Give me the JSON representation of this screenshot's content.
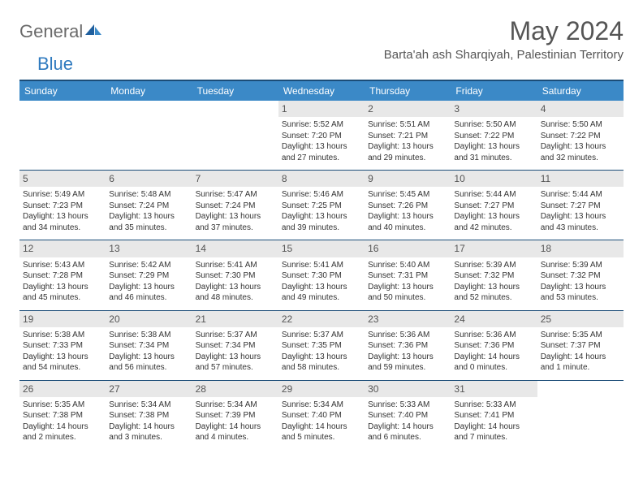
{
  "brand": {
    "name1": "General",
    "name2": "Blue"
  },
  "title": "May 2024",
  "location": "Barta'ah ash Sharqiyah, Palestinian Territory",
  "colors": {
    "header_bg": "#3b89c7",
    "header_fg": "#ffffff",
    "rule": "#1c4d78",
    "daynum_bg": "#e8e8e8",
    "text": "#333333",
    "title_fg": "#555555",
    "logo_gray": "#6a6a6a",
    "logo_blue": "#2f7abf"
  },
  "day_headers": [
    "Sunday",
    "Monday",
    "Tuesday",
    "Wednesday",
    "Thursday",
    "Friday",
    "Saturday"
  ],
  "weeks": [
    [
      null,
      null,
      null,
      {
        "n": "1",
        "sr": "Sunrise: 5:52 AM",
        "ss": "Sunset: 7:20 PM",
        "dl1": "Daylight: 13 hours",
        "dl2": "and 27 minutes."
      },
      {
        "n": "2",
        "sr": "Sunrise: 5:51 AM",
        "ss": "Sunset: 7:21 PM",
        "dl1": "Daylight: 13 hours",
        "dl2": "and 29 minutes."
      },
      {
        "n": "3",
        "sr": "Sunrise: 5:50 AM",
        "ss": "Sunset: 7:22 PM",
        "dl1": "Daylight: 13 hours",
        "dl2": "and 31 minutes."
      },
      {
        "n": "4",
        "sr": "Sunrise: 5:50 AM",
        "ss": "Sunset: 7:22 PM",
        "dl1": "Daylight: 13 hours",
        "dl2": "and 32 minutes."
      }
    ],
    [
      {
        "n": "5",
        "sr": "Sunrise: 5:49 AM",
        "ss": "Sunset: 7:23 PM",
        "dl1": "Daylight: 13 hours",
        "dl2": "and 34 minutes."
      },
      {
        "n": "6",
        "sr": "Sunrise: 5:48 AM",
        "ss": "Sunset: 7:24 PM",
        "dl1": "Daylight: 13 hours",
        "dl2": "and 35 minutes."
      },
      {
        "n": "7",
        "sr": "Sunrise: 5:47 AM",
        "ss": "Sunset: 7:24 PM",
        "dl1": "Daylight: 13 hours",
        "dl2": "and 37 minutes."
      },
      {
        "n": "8",
        "sr": "Sunrise: 5:46 AM",
        "ss": "Sunset: 7:25 PM",
        "dl1": "Daylight: 13 hours",
        "dl2": "and 39 minutes."
      },
      {
        "n": "9",
        "sr": "Sunrise: 5:45 AM",
        "ss": "Sunset: 7:26 PM",
        "dl1": "Daylight: 13 hours",
        "dl2": "and 40 minutes."
      },
      {
        "n": "10",
        "sr": "Sunrise: 5:44 AM",
        "ss": "Sunset: 7:27 PM",
        "dl1": "Daylight: 13 hours",
        "dl2": "and 42 minutes."
      },
      {
        "n": "11",
        "sr": "Sunrise: 5:44 AM",
        "ss": "Sunset: 7:27 PM",
        "dl1": "Daylight: 13 hours",
        "dl2": "and 43 minutes."
      }
    ],
    [
      {
        "n": "12",
        "sr": "Sunrise: 5:43 AM",
        "ss": "Sunset: 7:28 PM",
        "dl1": "Daylight: 13 hours",
        "dl2": "and 45 minutes."
      },
      {
        "n": "13",
        "sr": "Sunrise: 5:42 AM",
        "ss": "Sunset: 7:29 PM",
        "dl1": "Daylight: 13 hours",
        "dl2": "and 46 minutes."
      },
      {
        "n": "14",
        "sr": "Sunrise: 5:41 AM",
        "ss": "Sunset: 7:30 PM",
        "dl1": "Daylight: 13 hours",
        "dl2": "and 48 minutes."
      },
      {
        "n": "15",
        "sr": "Sunrise: 5:41 AM",
        "ss": "Sunset: 7:30 PM",
        "dl1": "Daylight: 13 hours",
        "dl2": "and 49 minutes."
      },
      {
        "n": "16",
        "sr": "Sunrise: 5:40 AM",
        "ss": "Sunset: 7:31 PM",
        "dl1": "Daylight: 13 hours",
        "dl2": "and 50 minutes."
      },
      {
        "n": "17",
        "sr": "Sunrise: 5:39 AM",
        "ss": "Sunset: 7:32 PM",
        "dl1": "Daylight: 13 hours",
        "dl2": "and 52 minutes."
      },
      {
        "n": "18",
        "sr": "Sunrise: 5:39 AM",
        "ss": "Sunset: 7:32 PM",
        "dl1": "Daylight: 13 hours",
        "dl2": "and 53 minutes."
      }
    ],
    [
      {
        "n": "19",
        "sr": "Sunrise: 5:38 AM",
        "ss": "Sunset: 7:33 PM",
        "dl1": "Daylight: 13 hours",
        "dl2": "and 54 minutes."
      },
      {
        "n": "20",
        "sr": "Sunrise: 5:38 AM",
        "ss": "Sunset: 7:34 PM",
        "dl1": "Daylight: 13 hours",
        "dl2": "and 56 minutes."
      },
      {
        "n": "21",
        "sr": "Sunrise: 5:37 AM",
        "ss": "Sunset: 7:34 PM",
        "dl1": "Daylight: 13 hours",
        "dl2": "and 57 minutes."
      },
      {
        "n": "22",
        "sr": "Sunrise: 5:37 AM",
        "ss": "Sunset: 7:35 PM",
        "dl1": "Daylight: 13 hours",
        "dl2": "and 58 minutes."
      },
      {
        "n": "23",
        "sr": "Sunrise: 5:36 AM",
        "ss": "Sunset: 7:36 PM",
        "dl1": "Daylight: 13 hours",
        "dl2": "and 59 minutes."
      },
      {
        "n": "24",
        "sr": "Sunrise: 5:36 AM",
        "ss": "Sunset: 7:36 PM",
        "dl1": "Daylight: 14 hours",
        "dl2": "and 0 minutes."
      },
      {
        "n": "25",
        "sr": "Sunrise: 5:35 AM",
        "ss": "Sunset: 7:37 PM",
        "dl1": "Daylight: 14 hours",
        "dl2": "and 1 minute."
      }
    ],
    [
      {
        "n": "26",
        "sr": "Sunrise: 5:35 AM",
        "ss": "Sunset: 7:38 PM",
        "dl1": "Daylight: 14 hours",
        "dl2": "and 2 minutes."
      },
      {
        "n": "27",
        "sr": "Sunrise: 5:34 AM",
        "ss": "Sunset: 7:38 PM",
        "dl1": "Daylight: 14 hours",
        "dl2": "and 3 minutes."
      },
      {
        "n": "28",
        "sr": "Sunrise: 5:34 AM",
        "ss": "Sunset: 7:39 PM",
        "dl1": "Daylight: 14 hours",
        "dl2": "and 4 minutes."
      },
      {
        "n": "29",
        "sr": "Sunrise: 5:34 AM",
        "ss": "Sunset: 7:40 PM",
        "dl1": "Daylight: 14 hours",
        "dl2": "and 5 minutes."
      },
      {
        "n": "30",
        "sr": "Sunrise: 5:33 AM",
        "ss": "Sunset: 7:40 PM",
        "dl1": "Daylight: 14 hours",
        "dl2": "and 6 minutes."
      },
      {
        "n": "31",
        "sr": "Sunrise: 5:33 AM",
        "ss": "Sunset: 7:41 PM",
        "dl1": "Daylight: 14 hours",
        "dl2": "and 7 minutes."
      },
      null
    ]
  ]
}
